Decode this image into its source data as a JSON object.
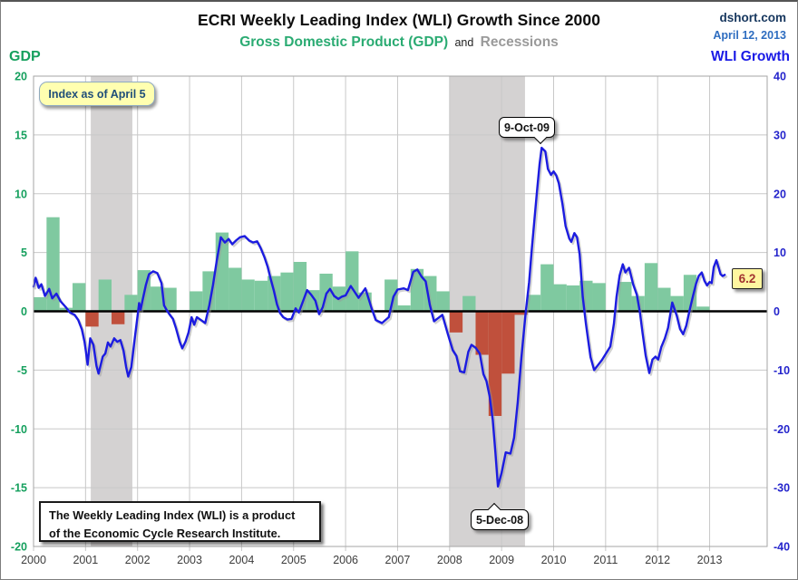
{
  "header": {
    "title": "ECRI Weekly Leading Index (WLI) Growth Since 2000",
    "subtitle_gdp": "Gross Domestic Product (GDP)",
    "subtitle_and": "and",
    "subtitle_recessions": "Recessions",
    "source": "dshort.com",
    "date": "April 12, 2013"
  },
  "annotations": {
    "index_note": "Index as of April 5",
    "peak_callout": "9-Oct-09",
    "trough_callout": "5-Dec-08",
    "last_value": "6.2",
    "footnote_line1": "The Weekly Leading Index (WLI) is a product",
    "footnote_line2": "of the Economic Cycle Research Institute."
  },
  "colors": {
    "gdp_positive": "#7FC9A0",
    "gdp_negative": "#C0503C",
    "wli_line": "#1C1CE0",
    "wli_shadow": "#9a9a9a",
    "recession_band": "#D4D2D2",
    "grid": "#C8C8C8",
    "zero_line": "#000000",
    "plot_border": "#A6A6A6",
    "left_axis_text": "#16A05E",
    "right_axis_text": "#2424CC",
    "x_axis_text": "#3d3d3d"
  },
  "chart_data": {
    "type": "line+bar",
    "title": "ECRI Weekly Leading Index (WLI) Growth Since 2000",
    "x_ticks": [
      2000,
      2001,
      2002,
      2003,
      2004,
      2005,
      2006,
      2007,
      2008,
      2009,
      2010,
      2011,
      2012,
      2013
    ],
    "x_range": [
      2000,
      2014.1
    ],
    "left_axis": {
      "label": "GDP",
      "range": [
        -20,
        20
      ],
      "ticks": [
        20,
        15,
        10,
        5,
        0,
        -5,
        -10,
        -15,
        -20
      ]
    },
    "right_axis": {
      "label": "WLI Growth",
      "range": [
        -40,
        40
      ],
      "ticks": [
        40,
        30,
        20,
        10,
        0,
        -10,
        -20,
        -30,
        -40
      ]
    },
    "recessions": [
      [
        2001.1,
        2001.9
      ],
      [
        2008.0,
        2009.45
      ]
    ],
    "gdp_bars": {
      "name": "GDP quarterly annualized % (bars)",
      "start_year": 2000,
      "quarters_per_year": 4,
      "values": [
        1.2,
        8.0,
        0.3,
        2.4,
        -1.3,
        2.7,
        -1.1,
        1.4,
        3.5,
        2.1,
        2.0,
        0.1,
        1.7,
        3.4,
        6.7,
        3.7,
        2.7,
        2.6,
        3.0,
        3.3,
        4.2,
        1.8,
        3.2,
        2.1,
        5.1,
        1.6,
        0.1,
        2.7,
        0.5,
        3.6,
        3.0,
        1.7,
        -1.8,
        1.3,
        -3.7,
        -8.9,
        -5.3,
        -0.3,
        1.4,
        4.0,
        2.3,
        2.2,
        2.6,
        2.4,
        0.1,
        2.5,
        1.3,
        4.1,
        2.0,
        1.3,
        3.1,
        0.4
      ]
    },
    "wli_series": {
      "name": "WLI Growth (line, right axis)",
      "peak": {
        "date": "9-Oct-09",
        "value": 27.8
      },
      "trough": {
        "date": "5-Dec-08",
        "value": -29.8
      },
      "last": {
        "date": "April 5",
        "value": 6.2
      },
      "points": [
        [
          2000.0,
          4.2
        ],
        [
          2000.04,
          5.7
        ],
        [
          2000.1,
          4.0
        ],
        [
          2000.15,
          4.6
        ],
        [
          2000.22,
          2.6
        ],
        [
          2000.3,
          3.8
        ],
        [
          2000.36,
          2.2
        ],
        [
          2000.44,
          3.0
        ],
        [
          2000.52,
          1.7
        ],
        [
          2000.62,
          0.7
        ],
        [
          2000.7,
          -0.2
        ],
        [
          2000.79,
          -0.6
        ],
        [
          2000.86,
          -1.5
        ],
        [
          2000.93,
          -3.1
        ],
        [
          2000.98,
          -5.2
        ],
        [
          2001.01,
          -7.0
        ],
        [
          2001.04,
          -9.1
        ],
        [
          2001.09,
          -4.6
        ],
        [
          2001.15,
          -5.7
        ],
        [
          2001.21,
          -9.3
        ],
        [
          2001.25,
          -10.6
        ],
        [
          2001.33,
          -7.7
        ],
        [
          2001.38,
          -7.2
        ],
        [
          2001.43,
          -5.3
        ],
        [
          2001.48,
          -6.0
        ],
        [
          2001.55,
          -4.6
        ],
        [
          2001.61,
          -5.2
        ],
        [
          2001.67,
          -4.9
        ],
        [
          2001.73,
          -6.7
        ],
        [
          2001.78,
          -9.5
        ],
        [
          2001.82,
          -11.1
        ],
        [
          2001.88,
          -9.5
        ],
        [
          2001.94,
          -5.0
        ],
        [
          2002.0,
          -0.8
        ],
        [
          2002.03,
          1.4
        ],
        [
          2002.06,
          0.3
        ],
        [
          2002.1,
          2.0
        ],
        [
          2002.16,
          4.5
        ],
        [
          2002.22,
          6.3
        ],
        [
          2002.3,
          6.8
        ],
        [
          2002.38,
          6.5
        ],
        [
          2002.46,
          4.8
        ],
        [
          2002.51,
          1.0
        ],
        [
          2002.56,
          0.2
        ],
        [
          2002.62,
          -0.6
        ],
        [
          2002.68,
          -1.3
        ],
        [
          2002.74,
          -2.9
        ],
        [
          2002.81,
          -5.2
        ],
        [
          2002.86,
          -6.3
        ],
        [
          2002.92,
          -5.2
        ],
        [
          2002.98,
          -3.6
        ],
        [
          2003.04,
          -1.0
        ],
        [
          2003.09,
          -2.3
        ],
        [
          2003.14,
          -1.0
        ],
        [
          2003.22,
          -1.5
        ],
        [
          2003.3,
          -2.0
        ],
        [
          2003.38,
          1.0
        ],
        [
          2003.45,
          4.5
        ],
        [
          2003.52,
          8.5
        ],
        [
          2003.6,
          12.6
        ],
        [
          2003.68,
          11.7
        ],
        [
          2003.75,
          12.3
        ],
        [
          2003.82,
          11.4
        ],
        [
          2003.9,
          12.1
        ],
        [
          2003.97,
          12.6
        ],
        [
          2004.06,
          12.8
        ],
        [
          2004.15,
          12.0
        ],
        [
          2004.22,
          11.7
        ],
        [
          2004.3,
          11.9
        ],
        [
          2004.37,
          10.7
        ],
        [
          2004.44,
          9.2
        ],
        [
          2004.5,
          7.6
        ],
        [
          2004.56,
          5.5
        ],
        [
          2004.62,
          3.5
        ],
        [
          2004.68,
          1.2
        ],
        [
          2004.74,
          -0.3
        ],
        [
          2004.8,
          -1.0
        ],
        [
          2004.88,
          -1.4
        ],
        [
          2004.96,
          -1.3
        ],
        [
          2005.04,
          0.5
        ],
        [
          2005.1,
          -0.2
        ],
        [
          2005.18,
          1.7
        ],
        [
          2005.26,
          3.6
        ],
        [
          2005.34,
          2.8
        ],
        [
          2005.42,
          1.8
        ],
        [
          2005.49,
          -0.5
        ],
        [
          2005.56,
          0.7
        ],
        [
          2005.63,
          3.0
        ],
        [
          2005.7,
          3.8
        ],
        [
          2005.78,
          2.6
        ],
        [
          2005.86,
          2.1
        ],
        [
          2005.93,
          2.5
        ],
        [
          2006.0,
          2.7
        ],
        [
          2006.1,
          4.3
        ],
        [
          2006.25,
          2.3
        ],
        [
          2006.38,
          3.9
        ],
        [
          2006.5,
          0.5
        ],
        [
          2006.58,
          -1.5
        ],
        [
          2006.7,
          -2.0
        ],
        [
          2006.83,
          -1.0
        ],
        [
          2006.92,
          2.5
        ],
        [
          2007.0,
          3.7
        ],
        [
          2007.12,
          3.9
        ],
        [
          2007.2,
          3.6
        ],
        [
          2007.3,
          6.7
        ],
        [
          2007.38,
          7.1
        ],
        [
          2007.46,
          5.9
        ],
        [
          2007.54,
          5.1
        ],
        [
          2007.62,
          1.1
        ],
        [
          2007.7,
          -1.7
        ],
        [
          2007.79,
          -1.1
        ],
        [
          2007.86,
          -0.6
        ],
        [
          2007.97,
          -4.0
        ],
        [
          2008.06,
          -6.6
        ],
        [
          2008.13,
          -7.6
        ],
        [
          2008.2,
          -10.2
        ],
        [
          2008.28,
          -10.4
        ],
        [
          2008.36,
          -6.9
        ],
        [
          2008.42,
          -5.7
        ],
        [
          2008.5,
          -6.2
        ],
        [
          2008.58,
          -7.2
        ],
        [
          2008.65,
          -10.7
        ],
        [
          2008.71,
          -11.9
        ],
        [
          2008.77,
          -14.5
        ],
        [
          2008.83,
          -18.5
        ],
        [
          2008.88,
          -24.0
        ],
        [
          2008.93,
          -29.8
        ],
        [
          2009.0,
          -27.5
        ],
        [
          2009.08,
          -24.0
        ],
        [
          2009.17,
          -24.2
        ],
        [
          2009.24,
          -21.5
        ],
        [
          2009.31,
          -15.5
        ],
        [
          2009.38,
          -8.0
        ],
        [
          2009.46,
          -0.5
        ],
        [
          2009.53,
          5.0
        ],
        [
          2009.58,
          10.5
        ],
        [
          2009.63,
          15.5
        ],
        [
          2009.68,
          20.3
        ],
        [
          2009.73,
          25.0
        ],
        [
          2009.77,
          27.8
        ],
        [
          2009.84,
          27.2
        ],
        [
          2009.89,
          24.2
        ],
        [
          2009.95,
          23.2
        ],
        [
          2010.0,
          23.8
        ],
        [
          2010.05,
          23.1
        ],
        [
          2010.1,
          21.8
        ],
        [
          2010.17,
          18.3
        ],
        [
          2010.23,
          14.5
        ],
        [
          2010.3,
          12.4
        ],
        [
          2010.34,
          11.8
        ],
        [
          2010.4,
          13.3
        ],
        [
          2010.45,
          12.6
        ],
        [
          2010.5,
          9.7
        ],
        [
          2010.56,
          2.5
        ],
        [
          2010.62,
          -2.1
        ],
        [
          2010.66,
          -4.7
        ],
        [
          2010.71,
          -7.8
        ],
        [
          2010.78,
          -10.0
        ],
        [
          2010.84,
          -9.3
        ],
        [
          2010.93,
          -8.3
        ],
        [
          2011.02,
          -7.0
        ],
        [
          2011.09,
          -6.0
        ],
        [
          2011.16,
          -2.1
        ],
        [
          2011.21,
          2.5
        ],
        [
          2011.27,
          6.1
        ],
        [
          2011.33,
          8.0
        ],
        [
          2011.38,
          6.6
        ],
        [
          2011.45,
          7.4
        ],
        [
          2011.53,
          4.6
        ],
        [
          2011.6,
          2.8
        ],
        [
          2011.66,
          -0.2
        ],
        [
          2011.71,
          -3.7
        ],
        [
          2011.77,
          -7.5
        ],
        [
          2011.84,
          -10.5
        ],
        [
          2011.9,
          -8.2
        ],
        [
          2011.96,
          -7.7
        ],
        [
          2012.01,
          -8.2
        ],
        [
          2012.07,
          -6.1
        ],
        [
          2012.14,
          -4.6
        ],
        [
          2012.2,
          -2.8
        ],
        [
          2012.28,
          1.5
        ],
        [
          2012.37,
          -0.8
        ],
        [
          2012.43,
          -3.0
        ],
        [
          2012.49,
          -3.9
        ],
        [
          2012.55,
          -2.5
        ],
        [
          2012.61,
          0.0
        ],
        [
          2012.68,
          2.6
        ],
        [
          2012.74,
          4.7
        ],
        [
          2012.79,
          6.0
        ],
        [
          2012.85,
          6.6
        ],
        [
          2012.9,
          5.2
        ],
        [
          2012.95,
          4.4
        ],
        [
          2013.0,
          5.0
        ],
        [
          2013.04,
          4.8
        ],
        [
          2013.08,
          7.5
        ],
        [
          2013.13,
          8.7
        ],
        [
          2013.17,
          7.5
        ],
        [
          2013.21,
          6.3
        ],
        [
          2013.25,
          6.0
        ],
        [
          2013.29,
          6.2
        ]
      ]
    }
  }
}
